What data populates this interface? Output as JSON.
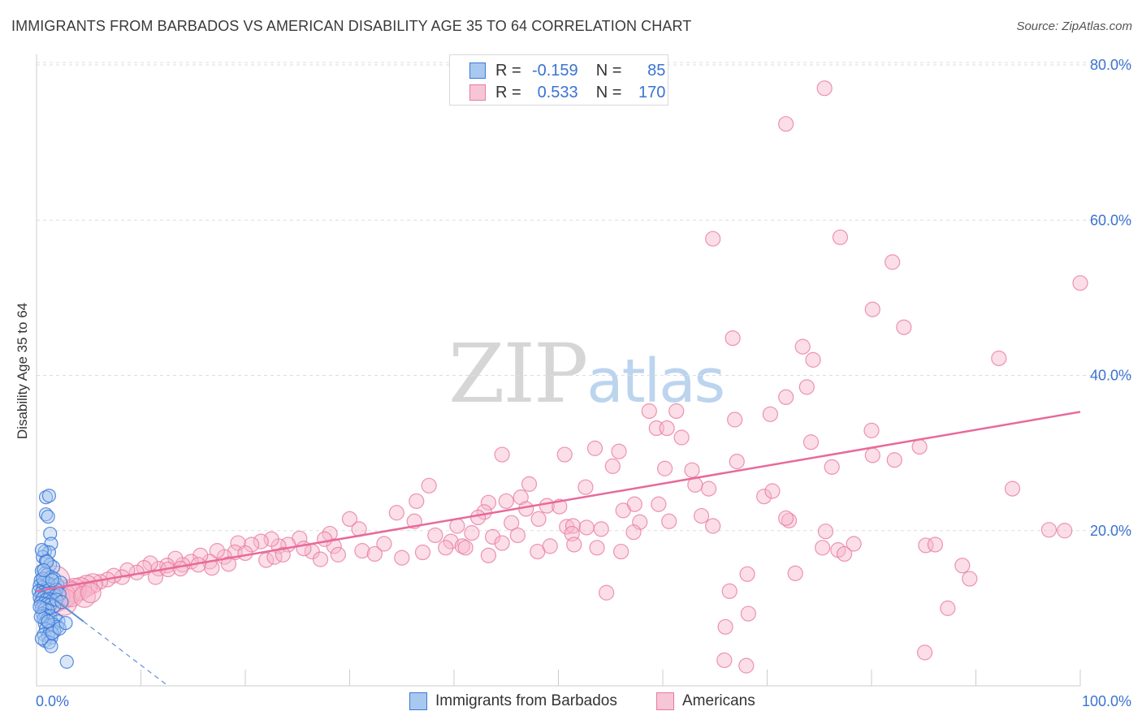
{
  "title": "IMMIGRANTS FROM BARBADOS VS AMERICAN DISABILITY AGE 35 TO 64 CORRELATION CHART",
  "source": "Source: ZipAtlas.com",
  "watermark": {
    "zip": "ZIP",
    "atlas": "atlas"
  },
  "colors": {
    "blue_fill": "#a8c8f0",
    "blue_stroke": "#3b78d8",
    "blue_line": "#5b8fd6",
    "pink_fill": "#f6b5c9",
    "pink_stroke": "#e87aa0",
    "pink_line": "#e8699a",
    "value_text": "#3b73d1",
    "grid": "#dddddd"
  },
  "legend": {
    "series": [
      {
        "r_label": "R =",
        "r_value": "-0.159",
        "n_label": "N =",
        "n_value": "85"
      },
      {
        "r_label": "R =",
        "r_value": "0.533",
        "n_label": "N =",
        "n_value": "170"
      }
    ]
  },
  "bottom_legend": {
    "blue": "Immigrants from Barbados",
    "pink": "Americans"
  },
  "chart_data": {
    "type": "scatter",
    "title": "IMMIGRANTS FROM BARBADOS VS AMERICAN DISABILITY AGE 35 TO 64 CORRELATION CHART",
    "xlabel": "",
    "ylabel": "Disability Age 35 to 64",
    "xlim": [
      0,
      100
    ],
    "ylim": [
      0,
      80
    ],
    "x_tick_labels": [
      "0.0%",
      "100.0%"
    ],
    "y_ticks": [
      20,
      40,
      60,
      80
    ],
    "y_tick_labels": [
      "20.0%",
      "40.0%",
      "60.0%",
      "80.0%"
    ],
    "grid": true,
    "series": [
      {
        "name": "Immigrants from Barbados",
        "color": "blue",
        "r": -0.159,
        "n": 85,
        "trend": {
          "x0": 0,
          "y0": 12.9,
          "x1": 12.6,
          "y1": 0,
          "style": "dashed",
          "extrapolated_from_x": 4.5
        },
        "points": [
          [
            0.9,
            24.3
          ],
          [
            1.2,
            24.5
          ],
          [
            0.9,
            22.1
          ],
          [
            1.1,
            21.8
          ],
          [
            1.3,
            19.6
          ],
          [
            1.4,
            18.3
          ],
          [
            0.8,
            17.3
          ],
          [
            1.2,
            17.2
          ],
          [
            0.6,
            16.6
          ],
          [
            0.9,
            16.1
          ],
          [
            1.3,
            15.6
          ],
          [
            1.6,
            15.3
          ],
          [
            0.5,
            14.8
          ],
          [
            0.8,
            14.5
          ],
          [
            1.0,
            14.3
          ],
          [
            1.4,
            14.0
          ],
          [
            1.7,
            13.8
          ],
          [
            0.4,
            13.6
          ],
          [
            0.7,
            13.4
          ],
          [
            1.1,
            13.2
          ],
          [
            1.5,
            13.0
          ],
          [
            2.0,
            13.0
          ],
          [
            2.3,
            13.3
          ],
          [
            0.3,
            12.9
          ],
          [
            0.6,
            12.7
          ],
          [
            0.9,
            12.5
          ],
          [
            1.2,
            12.4
          ],
          [
            1.6,
            12.2
          ],
          [
            1.9,
            12.4
          ],
          [
            0.2,
            12.2
          ],
          [
            0.5,
            12.0
          ],
          [
            0.8,
            11.8
          ],
          [
            1.0,
            11.9
          ],
          [
            1.3,
            11.7
          ],
          [
            1.8,
            11.6
          ],
          [
            2.2,
            11.8
          ],
          [
            0.3,
            11.4
          ],
          [
            0.6,
            11.3
          ],
          [
            0.9,
            11.1
          ],
          [
            1.2,
            11.2
          ],
          [
            1.5,
            11.0
          ],
          [
            0.4,
            10.7
          ],
          [
            0.7,
            10.6
          ],
          [
            1.0,
            10.5
          ],
          [
            1.3,
            10.4
          ],
          [
            1.7,
            10.3
          ],
          [
            0.5,
            10.0
          ],
          [
            0.8,
            9.9
          ],
          [
            1.1,
            9.7
          ],
          [
            0.6,
            9.3
          ],
          [
            0.9,
            9.1
          ],
          [
            1.3,
            9.0
          ],
          [
            0.7,
            8.7
          ],
          [
            1.0,
            8.5
          ],
          [
            1.4,
            8.4
          ],
          [
            1.8,
            8.6
          ],
          [
            2.1,
            8.3
          ],
          [
            0.8,
            8.0
          ],
          [
            1.2,
            7.8
          ],
          [
            1.6,
            7.9
          ],
          [
            2.0,
            7.6
          ],
          [
            0.9,
            7.3
          ],
          [
            1.3,
            7.1
          ],
          [
            1.7,
            7.0
          ],
          [
            0.7,
            6.6
          ],
          [
            1.1,
            6.4
          ],
          [
            1.4,
            6.2
          ],
          [
            0.8,
            5.8
          ],
          [
            1.2,
            5.6
          ],
          [
            1.4,
            5.1
          ],
          [
            0.5,
            6.1
          ],
          [
            1.5,
            6.8
          ],
          [
            0.4,
            8.9
          ],
          [
            2.2,
            7.4
          ],
          [
            0.6,
            13.8
          ],
          [
            1.9,
            11.1
          ],
          [
            2.4,
            10.8
          ],
          [
            0.3,
            10.2
          ],
          [
            1.1,
            8.3
          ],
          [
            1.5,
            13.6
          ],
          [
            0.5,
            17.5
          ],
          [
            1.0,
            16.0
          ],
          [
            2.9,
            3.1
          ],
          [
            2.8,
            8.1
          ],
          [
            0.7,
            14.9
          ]
        ]
      },
      {
        "name": "Americans",
        "color": "pink",
        "r": 0.533,
        "n": 170,
        "trend": {
          "x0": 0,
          "y0": 12.2,
          "x1": 100,
          "y1": 35.3,
          "style": "solid"
        },
        "points": [
          [
            75.5,
            77.0
          ],
          [
            71.8,
            72.4
          ],
          [
            64.8,
            57.6
          ],
          [
            77.0,
            57.8
          ],
          [
            82.0,
            54.6
          ],
          [
            100,
            51.9
          ],
          [
            80.1,
            48.5
          ],
          [
            83.1,
            46.2
          ],
          [
            66.7,
            44.8
          ],
          [
            73.4,
            43.7
          ],
          [
            74.4,
            42.0
          ],
          [
            92.2,
            42.2
          ],
          [
            73.8,
            38.5
          ],
          [
            71.8,
            37.2
          ],
          [
            58.7,
            35.4
          ],
          [
            61.3,
            35.4
          ],
          [
            66.9,
            34.3
          ],
          [
            70.3,
            35.0
          ],
          [
            59.4,
            33.2
          ],
          [
            60.4,
            33.2
          ],
          [
            80.0,
            32.9
          ],
          [
            61.8,
            32.0
          ],
          [
            74.2,
            31.4
          ],
          [
            84.6,
            30.8
          ],
          [
            53.5,
            30.6
          ],
          [
            55.8,
            30.2
          ],
          [
            44.6,
            29.8
          ],
          [
            50.6,
            29.8
          ],
          [
            67.1,
            28.9
          ],
          [
            80.1,
            29.7
          ],
          [
            82.2,
            29.1
          ],
          [
            55.2,
            28.3
          ],
          [
            60.2,
            28.0
          ],
          [
            62.8,
            27.8
          ],
          [
            76.2,
            28.2
          ],
          [
            64.4,
            25.4
          ],
          [
            63.1,
            25.9
          ],
          [
            69.7,
            24.4
          ],
          [
            70.5,
            25.1
          ],
          [
            93.5,
            25.4
          ],
          [
            52.6,
            25.6
          ],
          [
            47.2,
            26.0
          ],
          [
            37.6,
            25.8
          ],
          [
            36.4,
            23.8
          ],
          [
            43.3,
            23.6
          ],
          [
            45.0,
            23.8
          ],
          [
            46.4,
            24.3
          ],
          [
            48.9,
            23.2
          ],
          [
            50.1,
            23.1
          ],
          [
            57.3,
            23.4
          ],
          [
            59.6,
            23.4
          ],
          [
            42.9,
            22.4
          ],
          [
            46.9,
            22.8
          ],
          [
            56.2,
            22.6
          ],
          [
            63.7,
            21.9
          ],
          [
            72.1,
            21.3
          ],
          [
            34.5,
            22.3
          ],
          [
            36.2,
            21.2
          ],
          [
            42.3,
            21.7
          ],
          [
            45.5,
            21.0
          ],
          [
            48.1,
            21.5
          ],
          [
            57.8,
            21.1
          ],
          [
            60.6,
            21.2
          ],
          [
            64.8,
            20.6
          ],
          [
            50.8,
            20.5
          ],
          [
            51.4,
            20.6
          ],
          [
            52.7,
            20.4
          ],
          [
            40.3,
            20.6
          ],
          [
            41.7,
            19.7
          ],
          [
            43.7,
            19.2
          ],
          [
            46.1,
            19.4
          ],
          [
            51.3,
            19.6
          ],
          [
            54.1,
            20.2
          ],
          [
            57.2,
            19.8
          ],
          [
            75.6,
            19.9
          ],
          [
            76.8,
            17.5
          ],
          [
            77.4,
            17.0
          ],
          [
            85.2,
            18.1
          ],
          [
            38.2,
            19.4
          ],
          [
            39.7,
            18.6
          ],
          [
            40.8,
            18.0
          ],
          [
            44.6,
            18.4
          ],
          [
            41.1,
            17.8
          ],
          [
            30.0,
            21.5
          ],
          [
            30.9,
            20.2
          ],
          [
            28.1,
            19.6
          ],
          [
            28.5,
            18.0
          ],
          [
            27.6,
            18.9
          ],
          [
            26.4,
            17.3
          ],
          [
            25.2,
            19.0
          ],
          [
            24.1,
            18.2
          ],
          [
            23.2,
            18.0
          ],
          [
            22.5,
            18.9
          ],
          [
            21.5,
            18.6
          ],
          [
            20.6,
            18.2
          ],
          [
            19.3,
            18.4
          ],
          [
            19.0,
            17.2
          ],
          [
            18.0,
            16.6
          ],
          [
            17.3,
            17.4
          ],
          [
            16.6,
            16.0
          ],
          [
            15.7,
            16.8
          ],
          [
            14.8,
            16.0
          ],
          [
            14.0,
            15.6
          ],
          [
            13.3,
            16.4
          ],
          [
            12.5,
            15.5
          ],
          [
            11.7,
            15.1
          ],
          [
            10.9,
            15.8
          ],
          [
            10.3,
            15.2
          ],
          [
            9.6,
            14.6
          ],
          [
            8.7,
            14.9
          ],
          [
            8.2,
            14.0
          ],
          [
            7.4,
            14.2
          ],
          [
            6.8,
            13.7
          ],
          [
            6.1,
            13.4
          ],
          [
            5.4,
            13.2
          ],
          [
            4.8,
            12.9
          ],
          [
            4.2,
            12.5
          ],
          [
            3.6,
            12.3
          ],
          [
            3.0,
            12.0
          ],
          [
            2.4,
            11.6
          ],
          [
            1.8,
            11.4
          ],
          [
            1.3,
            11.2
          ],
          [
            1.8,
            13.6
          ],
          [
            2.6,
            10.8
          ],
          [
            3.3,
            11.8
          ],
          [
            4.6,
            11.5
          ],
          [
            5.2,
            12.0
          ],
          [
            11.4,
            14.0
          ],
          [
            12.6,
            15.0
          ],
          [
            13.8,
            15.1
          ],
          [
            15.5,
            15.6
          ],
          [
            16.8,
            15.2
          ],
          [
            18.4,
            15.7
          ],
          [
            20.0,
            17.1
          ],
          [
            22.0,
            16.2
          ],
          [
            22.8,
            16.6
          ],
          [
            23.6,
            16.9
          ],
          [
            25.6,
            17.7
          ],
          [
            27.2,
            16.3
          ],
          [
            28.9,
            16.9
          ],
          [
            31.2,
            17.4
          ],
          [
            32.4,
            17.0
          ],
          [
            33.3,
            18.3
          ],
          [
            35.0,
            16.5
          ],
          [
            37.0,
            17.2
          ],
          [
            39.2,
            17.8
          ],
          [
            43.3,
            16.8
          ],
          [
            48.0,
            17.3
          ],
          [
            49.2,
            18.0
          ],
          [
            51.5,
            18.2
          ],
          [
            53.7,
            17.8
          ],
          [
            56.0,
            17.3
          ],
          [
            54.6,
            12.0
          ],
          [
            66.4,
            12.2
          ],
          [
            68.1,
            14.4
          ],
          [
            88.7,
            15.5
          ],
          [
            89.4,
            13.8
          ],
          [
            87.3,
            10.0
          ],
          [
            72.7,
            14.5
          ],
          [
            68.2,
            9.3
          ],
          [
            66.0,
            7.6
          ],
          [
            65.9,
            3.3
          ],
          [
            68.0,
            2.6
          ],
          [
            85.1,
            4.3
          ],
          [
            75.3,
            17.8
          ],
          [
            98.5,
            20.0
          ],
          [
            86.1,
            18.2
          ],
          [
            97.0,
            20.1
          ],
          [
            71.8,
            21.6
          ],
          [
            78.3,
            18.3
          ]
        ]
      }
    ]
  }
}
